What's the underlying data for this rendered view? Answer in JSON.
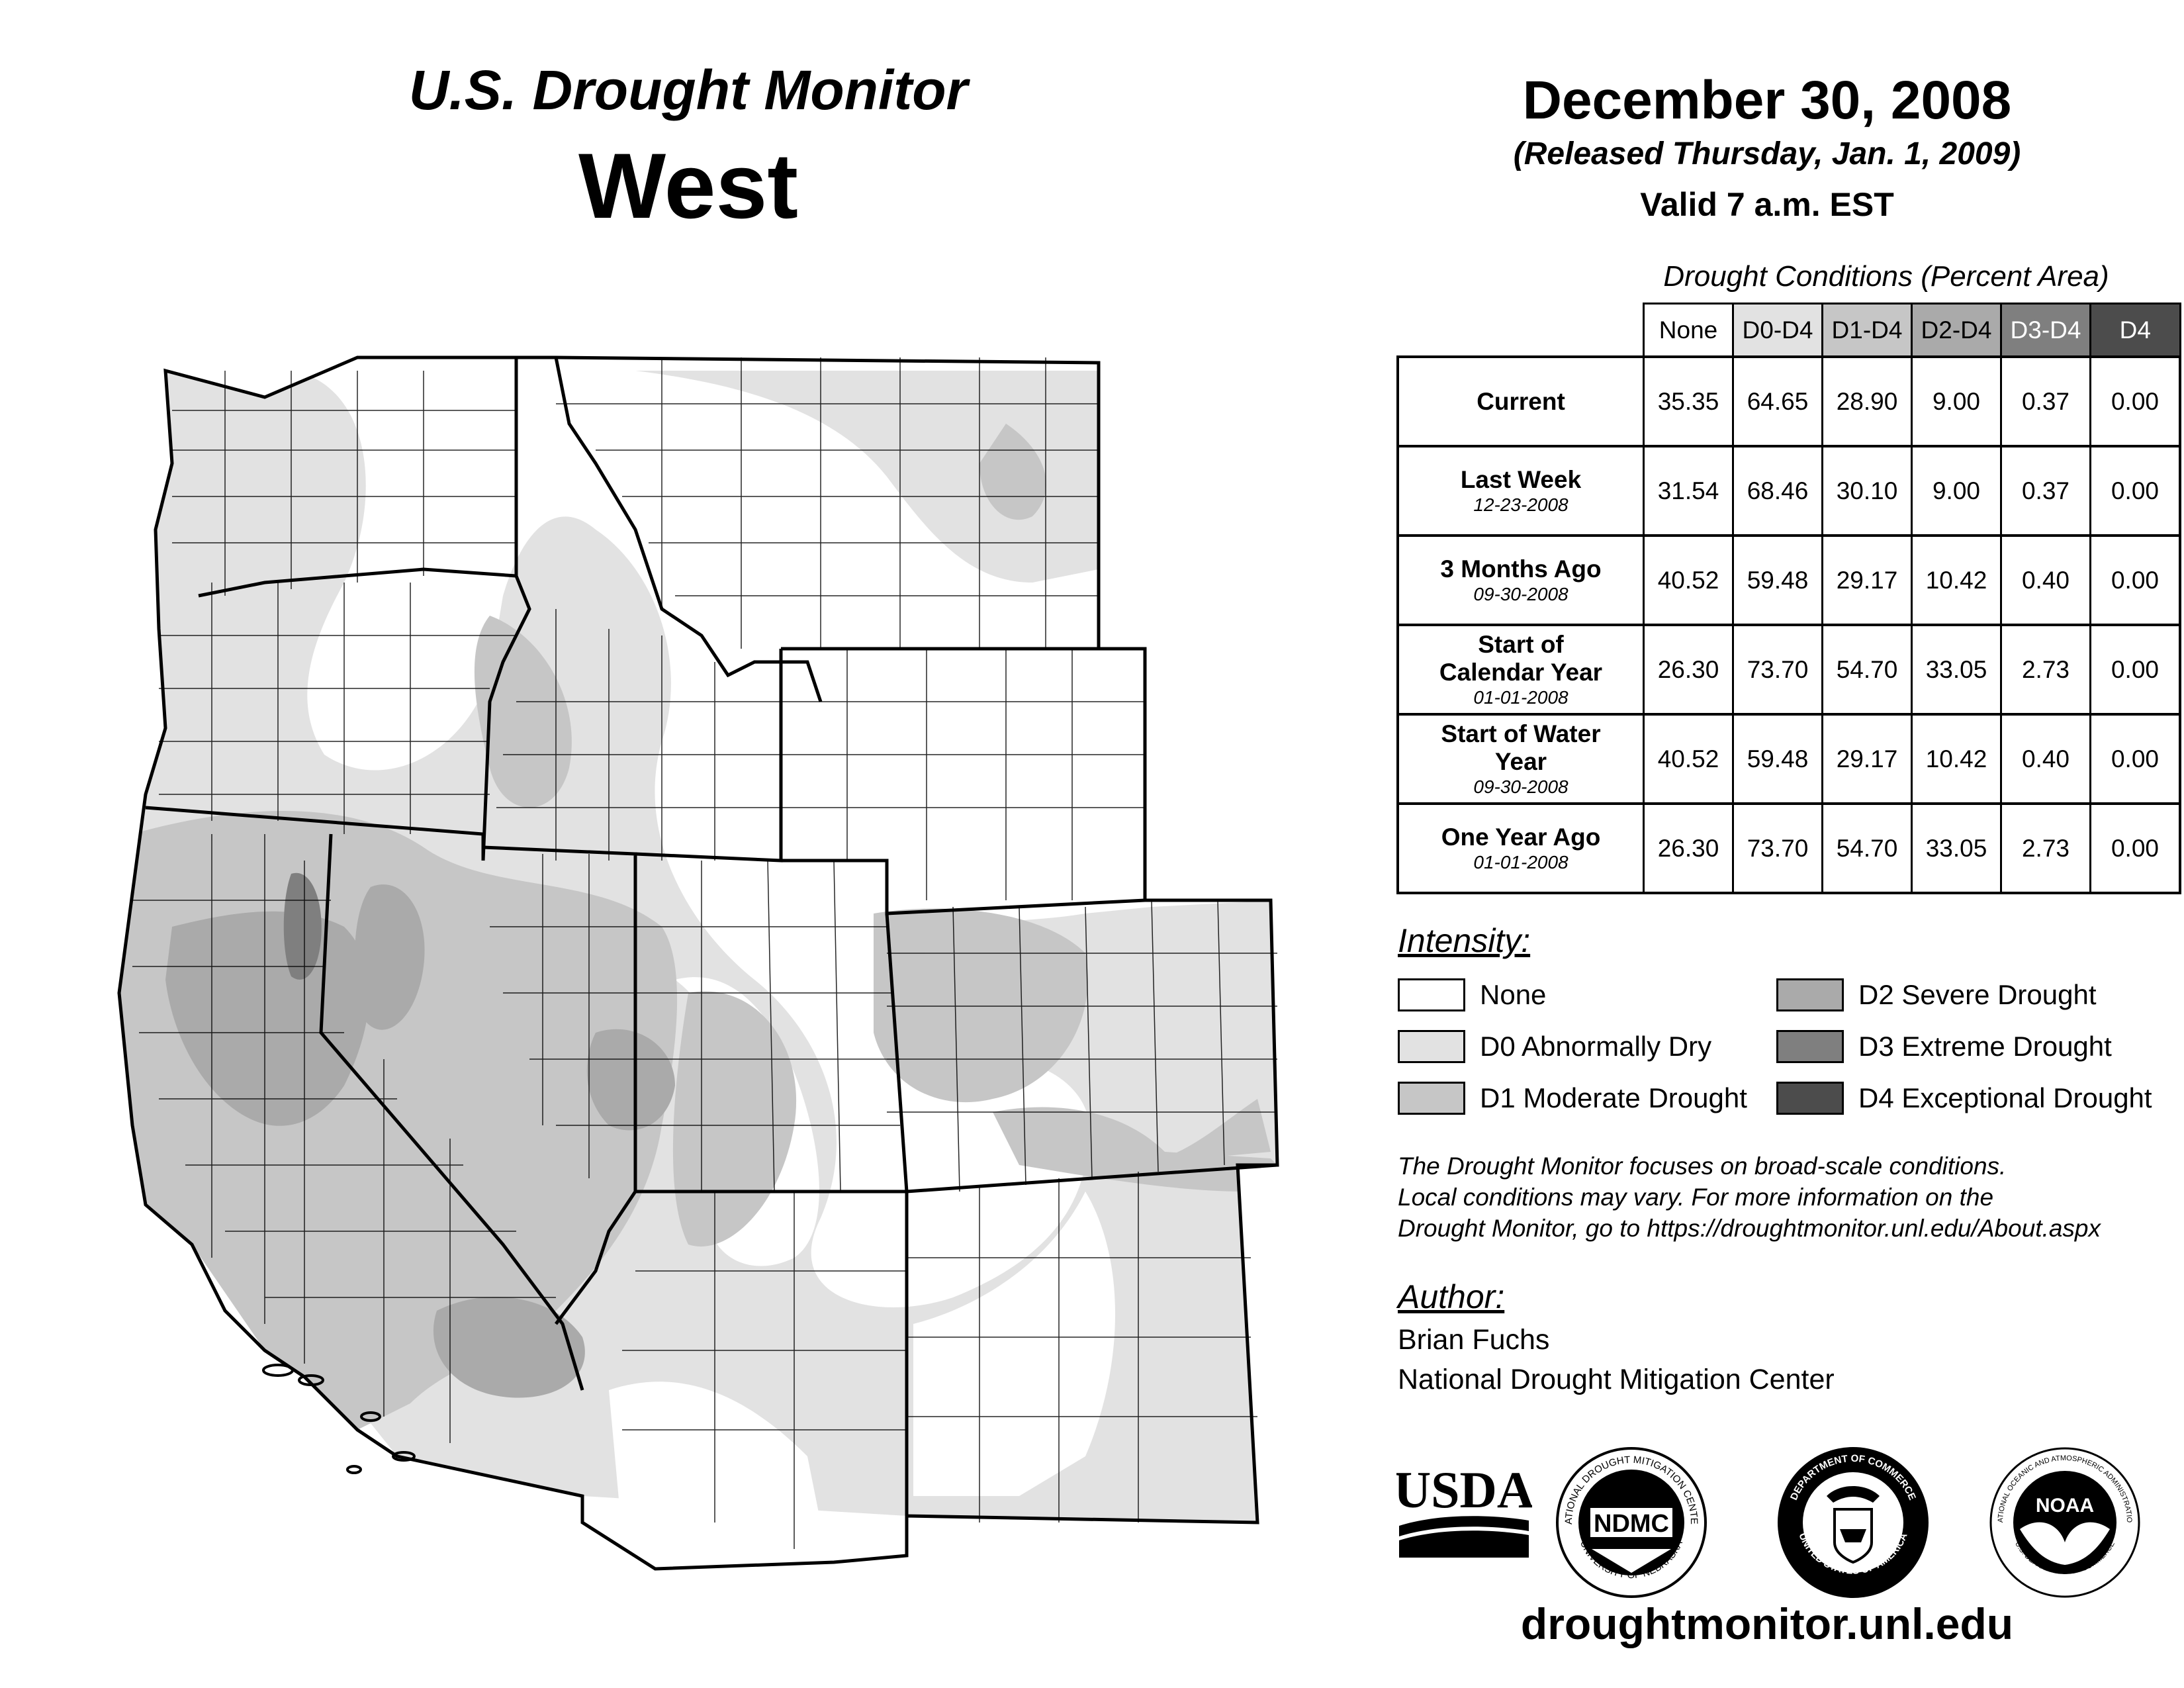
{
  "header": {
    "title": "U.S. Drought Monitor",
    "region": "West",
    "date": "December 30, 2008",
    "released": "(Released Thursday, Jan. 1, 2009)",
    "valid": "Valid 7 a.m. EST"
  },
  "table": {
    "title": "Drought Conditions (Percent Area)",
    "columns": [
      "None",
      "D0-D4",
      "D1-D4",
      "D2-D4",
      "D3-D4",
      "D4"
    ],
    "rows": [
      {
        "label": "Current",
        "date": "",
        "values": [
          "35.35",
          "64.65",
          "28.90",
          "9.00",
          "0.37",
          "0.00"
        ]
      },
      {
        "label": "Last Week",
        "date": "12-23-2008",
        "values": [
          "31.54",
          "68.46",
          "30.10",
          "9.00",
          "0.37",
          "0.00"
        ]
      },
      {
        "label": "3 Months Ago",
        "date": "09-30-2008",
        "values": [
          "40.52",
          "59.48",
          "29.17",
          "10.42",
          "0.40",
          "0.00"
        ]
      },
      {
        "label": "Start of Calendar Year",
        "date": "01-01-2008",
        "values": [
          "26.30",
          "73.70",
          "54.70",
          "33.05",
          "2.73",
          "0.00"
        ]
      },
      {
        "label": "Start of Water Year",
        "date": "09-30-2008",
        "values": [
          "40.52",
          "59.48",
          "29.17",
          "10.42",
          "0.40",
          "0.00"
        ]
      },
      {
        "label": "One Year Ago",
        "date": "01-01-2008",
        "values": [
          "26.30",
          "73.70",
          "54.70",
          "33.05",
          "2.73",
          "0.00"
        ]
      }
    ]
  },
  "legend": {
    "heading": "Intensity:",
    "items": [
      {
        "label": "None",
        "color": "#ffffff"
      },
      {
        "label": "D0 Abnormally Dry",
        "color": "#e2e2e2"
      },
      {
        "label": "D1 Moderate Drought",
        "color": "#c6c6c6"
      },
      {
        "label": "D2 Severe Drought",
        "color": "#aaaaaa"
      },
      {
        "label": "D3 Extreme Drought",
        "color": "#7f7f7f"
      },
      {
        "label": "D4 Exceptional Drought",
        "color": "#4c4c4c"
      }
    ]
  },
  "header_colors": [
    "#ffffff",
    "#e2e2e2",
    "#c6c6c6",
    "#aaaaaa",
    "#7f7f7f",
    "#4c4c4c"
  ],
  "disclaimer": [
    "The Drought Monitor focuses on broad-scale conditions.",
    "Local conditions may vary. For more information on the",
    "Drought Monitor, go to https://droughtmonitor.unl.edu/About.aspx"
  ],
  "author": {
    "heading": "Author:",
    "name": "Brian Fuchs",
    "org": "National Drought Mitigation Center"
  },
  "logos": {
    "usda": "USDA",
    "ndmc": "NDMC",
    "ndmc_ring_top": "NATIONAL DROUGHT MITIGATION CENTER",
    "ndmc_ring_bottom": "UNIVERSITY OF NEBRASKA",
    "doc_ring_top": "DEPARTMENT OF COMMERCE",
    "doc_ring_bottom": "UNITED STATES OF AMERICA",
    "noaa": "NOAA",
    "noaa_ring_top": "NATIONAL OCEANIC AND ATMOSPHERIC ADMINISTRATION",
    "noaa_ring_bottom": "U.S. DEPARTMENT OF COMMERCE"
  },
  "site": "droughtmonitor.unl.edu"
}
